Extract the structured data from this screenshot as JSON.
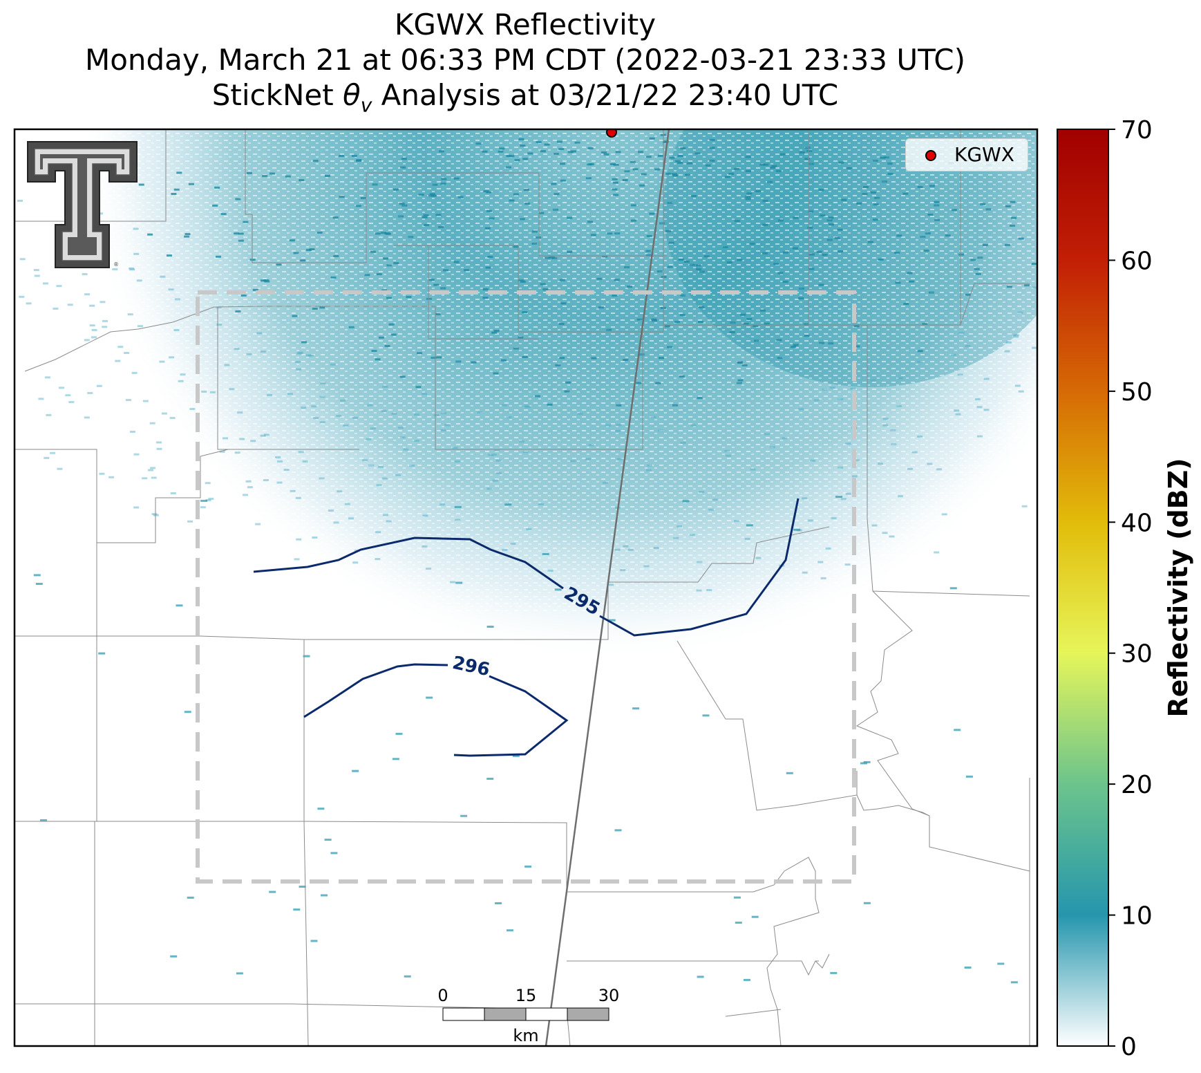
{
  "title": {
    "line1": "KGWX Reflectivity",
    "line2": "Monday, March 21 at 06:33 PM CDT (2022-03-21 23:33 UTC)",
    "line3_prefix": "StickNet ",
    "line3_symbol": "θ",
    "line3_subscript": "v",
    "line3_suffix": " Analysis at 03/21/22 23:40 UTC"
  },
  "legend": {
    "label": "KGWX",
    "marker_color": "#e00000"
  },
  "colorbar": {
    "label": "Reflectivity (dBZ)",
    "min": 0,
    "max": 70,
    "ticks": [
      "0",
      "10",
      "20",
      "30",
      "40",
      "50",
      "60",
      "70"
    ],
    "colors": [
      "#ffffff",
      "#2596ad",
      "#6cc48c",
      "#e6f55a",
      "#e2bc0a",
      "#d66a05",
      "#c21f05",
      "#a00000"
    ]
  },
  "contours": {
    "color": "#0b2a6b",
    "labels": [
      "295",
      "296"
    ]
  },
  "scale_bar": {
    "ticks": [
      "0",
      "15",
      "30"
    ],
    "unit": "km"
  },
  "logo": {
    "name": "Texas Tech Double T"
  }
}
